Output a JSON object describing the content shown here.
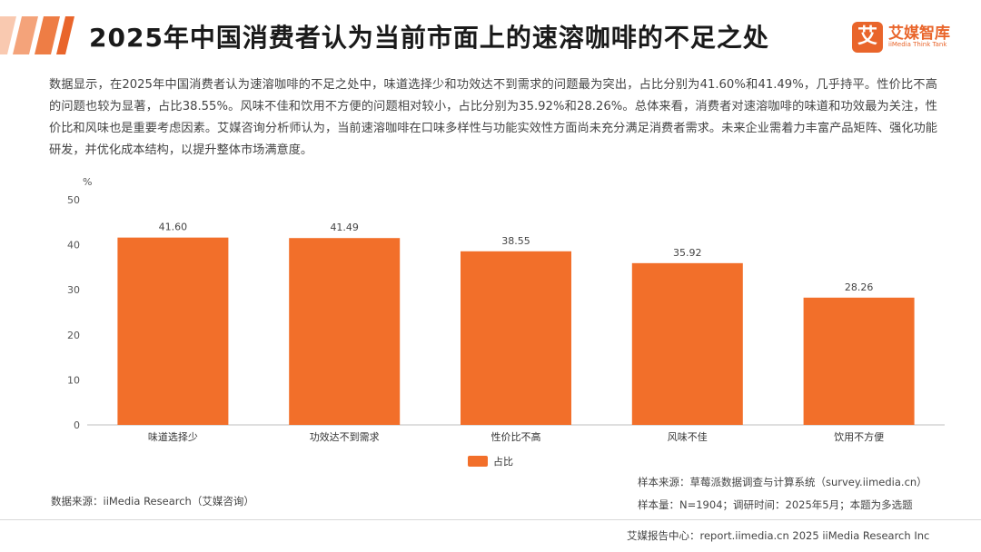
{
  "header": {
    "title": "2025年中国消费者认为当前市面上的速溶咖啡的不足之处",
    "logo_name": "艾媒智库",
    "logo_sub": "iiMedia Think Tank",
    "logo_mark": "艾"
  },
  "summary": "数据显示，在2025年中国消费者认为速溶咖啡的不足之处中，味道选择少和功效达不到需求的问题最为突出，占比分别为41.60%和41.49%，几乎持平。性价比不高的问题也较为显著，占比38.55%。风味不佳和饮用不方便的问题相对较小，占比分别为35.92%和28.26%。总体来看，消费者对速溶咖啡的味道和功效最为关注，性价比和风味也是重要考虑因素。艾媒咨询分析师认为，当前速溶咖啡在口味多样性与功能实效性方面尚未充分满足消费者需求。未来企业需着力丰富产品矩阵、强化功能研发，并优化成本结构，以提升整体市场满意度。",
  "chart_data": {
    "type": "bar",
    "categories": [
      "味道选择少",
      "功效达不到需求",
      "性价比不高",
      "风味不佳",
      "饮用不方便"
    ],
    "series": [
      {
        "name": "占比",
        "values": [
          41.6,
          41.49,
          38.55,
          35.92,
          28.26
        ]
      }
    ],
    "value_labels": [
      "41.60",
      "41.49",
      "38.55",
      "35.92",
      "28.26"
    ],
    "ylabel": "%",
    "ylim": [
      0,
      50
    ],
    "yticks": [
      0,
      10,
      20,
      30,
      40,
      50
    ],
    "grid": false,
    "legend": "bottom-center",
    "bar_color": "#f26f2a"
  },
  "footer": {
    "source": "数据来源：iiMedia Research（艾媒咨询）",
    "sample_source": "样本来源：草莓派数据调查与计算系统（survey.iimedia.cn）",
    "sample_size": "样本量：N=1904；调研时间：2025年5月；本题为多选题",
    "report": "艾媒报告中心：report.iimedia.cn  2025 iiMedia Research Inc"
  },
  "colors": {
    "accent": "#e9652b",
    "bar": "#f26f2a"
  }
}
